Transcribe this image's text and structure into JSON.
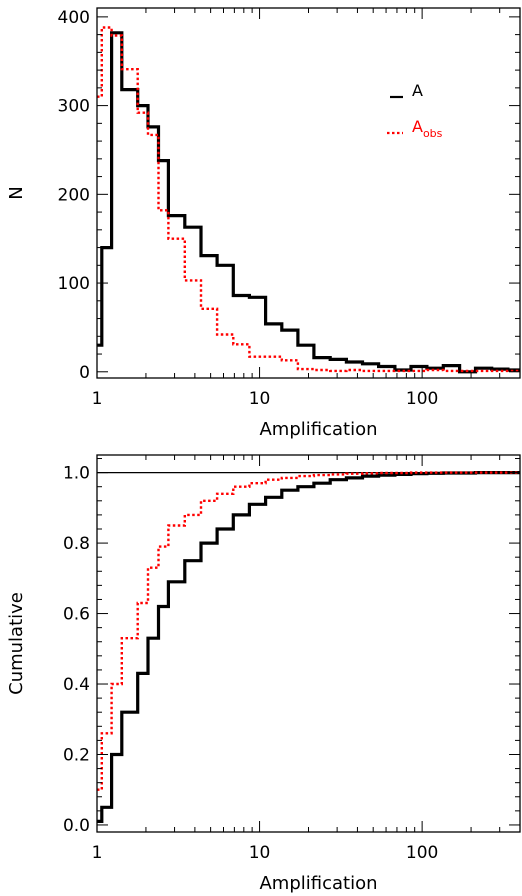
{
  "colors": {
    "A": "#000000",
    "A_obs": "#ff0000",
    "frame": "#000000"
  },
  "chart_data": [
    {
      "type": "histogram-step",
      "xscale": "log",
      "xlim": [
        1,
        400
      ],
      "ylim": [
        -7,
        410
      ],
      "xlabel": "Amplification",
      "ylabel": "N",
      "xticks": [
        {
          "v": 1,
          "label": "1"
        },
        {
          "v": 10,
          "label": "10"
        },
        {
          "v": 100,
          "label": "100"
        }
      ],
      "yticks": [
        {
          "v": 0,
          "label": "0"
        },
        {
          "v": 100,
          "label": "100"
        },
        {
          "v": 200,
          "label": "200"
        },
        {
          "v": 300,
          "label": "300"
        },
        {
          "v": 400,
          "label": "400"
        }
      ],
      "legend": {
        "placement": "top-right",
        "entries": [
          {
            "series": "A",
            "text": "A",
            "sub": ""
          },
          {
            "series": "A_obs",
            "text": "A",
            "sub": "obs"
          }
        ]
      },
      "series": [
        {
          "key": "A",
          "color": "#000000",
          "style": "solid",
          "edges": [
            1,
            1.07,
            1.23,
            1.42,
            1.78,
            2.06,
            2.39,
            2.75,
            3.47,
            4.36,
            5.48,
            6.89,
            8.66,
            10.9,
            13.7,
            17.2,
            21.6,
            27.2,
            34.2,
            43.0,
            54.0,
            68.0,
            85.4,
            107,
            135,
            170,
            213,
            268,
            337,
            400
          ],
          "values": [
            30,
            140,
            382,
            318,
            300,
            276,
            238,
            176,
            163,
            131,
            120,
            86,
            84,
            54,
            47,
            30,
            16,
            14,
            11,
            9,
            6,
            2,
            6,
            4,
            7,
            0,
            4,
            3,
            2
          ]
        },
        {
          "key": "A_obs",
          "color": "#ff0000",
          "style": "dotted",
          "edges": [
            1,
            1.07,
            1.23,
            1.42,
            1.78,
            2.06,
            2.39,
            2.75,
            3.47,
            4.36,
            5.48,
            6.89,
            8.66,
            10.9,
            13.7,
            17.2,
            21.6,
            27.2,
            34.2,
            43.0,
            54.0,
            68.0,
            85.4,
            107,
            135,
            170,
            213,
            268,
            337,
            400
          ],
          "values": [
            310,
            388,
            379,
            341,
            292,
            267,
            182,
            150,
            103,
            71,
            42,
            31,
            17,
            17,
            13,
            3,
            2,
            1,
            2,
            1,
            1,
            1,
            1,
            2,
            1,
            1,
            1,
            1,
            1
          ]
        }
      ]
    },
    {
      "type": "cumulative-step",
      "xscale": "log",
      "xlim": [
        1,
        400
      ],
      "ylim": [
        -0.02,
        1.05
      ],
      "xlabel": "Amplification",
      "ylabel": "Cumulative",
      "reference_line": 1.0,
      "xticks": [
        {
          "v": 1,
          "label": "1"
        },
        {
          "v": 10,
          "label": "10"
        },
        {
          "v": 100,
          "label": "100"
        }
      ],
      "yticks": [
        {
          "v": 0.0,
          "label": "0.0"
        },
        {
          "v": 0.2,
          "label": "0.2"
        },
        {
          "v": 0.4,
          "label": "0.4"
        },
        {
          "v": 0.6,
          "label": "0.6"
        },
        {
          "v": 0.8,
          "label": "0.8"
        },
        {
          "v": 1.0,
          "label": "1.0"
        }
      ],
      "series": [
        {
          "key": "A",
          "color": "#000000",
          "style": "solid",
          "edges": [
            1,
            1.07,
            1.23,
            1.42,
            1.78,
            2.06,
            2.39,
            2.75,
            3.47,
            4.36,
            5.48,
            6.89,
            8.66,
            10.9,
            13.7,
            17.2,
            21.6,
            27.2,
            34.2,
            43.0,
            54.0,
            68.0,
            85.4,
            107,
            135,
            170,
            213,
            268,
            337,
            400
          ],
          "values": [
            0.01,
            0.05,
            0.2,
            0.32,
            0.43,
            0.53,
            0.62,
            0.69,
            0.75,
            0.8,
            0.84,
            0.88,
            0.91,
            0.93,
            0.95,
            0.96,
            0.97,
            0.98,
            0.985,
            0.99,
            0.993,
            0.995,
            0.997,
            0.998,
            0.999,
            0.999,
            1.0,
            1.0,
            1.0
          ]
        },
        {
          "key": "A_obs",
          "color": "#ff0000",
          "style": "dotted",
          "edges": [
            1,
            1.07,
            1.23,
            1.42,
            1.78,
            2.06,
            2.39,
            2.75,
            3.47,
            4.36,
            5.48,
            6.89,
            8.66,
            10.9,
            13.7,
            17.2,
            21.6,
            27.2,
            34.2,
            43.0,
            54.0,
            68.0,
            85.4,
            107,
            135,
            170,
            213,
            268,
            337,
            400
          ],
          "values": [
            0.1,
            0.26,
            0.4,
            0.53,
            0.63,
            0.73,
            0.79,
            0.85,
            0.88,
            0.92,
            0.94,
            0.96,
            0.97,
            0.98,
            0.985,
            0.99,
            0.993,
            0.995,
            0.997,
            0.998,
            0.999,
            0.999,
            1.0,
            1.0,
            1.0,
            1.0,
            1.0,
            1.0,
            1.0
          ]
        }
      ]
    }
  ]
}
